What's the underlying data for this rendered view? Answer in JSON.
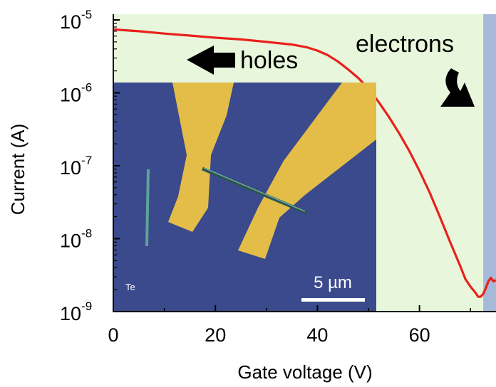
{
  "chart_data": {
    "type": "line",
    "xlabel": "Gate voltage (V)",
    "ylabel": "Current (A)",
    "xlim": [
      0,
      75
    ],
    "ylim_log10": [
      -9,
      -5
    ],
    "y_scale": "log",
    "grid": false,
    "x_ticks": [
      0,
      20,
      40,
      60
    ],
    "x_tick_labels": [
      "0",
      "20",
      "40",
      "60"
    ],
    "y_ticks": [
      {
        "base": "10",
        "exp": "-5",
        "value": 1e-05
      },
      {
        "base": "10",
        "exp": "-6",
        "value": 1e-06
      },
      {
        "base": "10",
        "exp": "-7",
        "value": 1e-07
      },
      {
        "base": "10",
        "exp": "-8",
        "value": 1e-08
      },
      {
        "base": "10",
        "exp": "-9",
        "value": 1e-09
      }
    ],
    "series": [
      {
        "color": "#e8211b",
        "x": [
          0,
          5,
          10,
          15,
          20,
          25,
          30,
          35,
          38,
          40,
          42,
          44,
          46,
          48,
          50,
          52,
          54,
          56,
          58,
          60,
          62,
          64,
          66,
          68,
          69,
          70,
          71,
          71.5,
          72,
          72.5,
          73,
          73.5,
          74,
          74.5,
          75
        ],
        "y": [
          7.4e-06,
          7e-06,
          6.5e-06,
          6.1e-06,
          5.7e-06,
          5.4e-06,
          5e-06,
          4.6e-06,
          4.2e-06,
          3.8e-06,
          3.3e-06,
          2.7e-06,
          2.1e-06,
          1.6e-06,
          1.15e-06,
          7.5e-07,
          4.7e-07,
          2.8e-07,
          1.6e-07,
          8.5e-08,
          4.3e-08,
          2e-08,
          9e-09,
          4.2e-09,
          2.8e-09,
          2.2e-09,
          1.8e-09,
          1.6e-09,
          1.6e-09,
          1.75e-09,
          2.1e-09,
          2.6e-09,
          2.9e-09,
          2.6e-09,
          2.7e-09
        ]
      }
    ],
    "regions": [
      {
        "name": "holes-region",
        "x_range": [
          0,
          72.5
        ],
        "color": "#e8f7dc"
      },
      {
        "name": "electrons-region",
        "x_range": [
          72.5,
          75
        ],
        "color": "#a7b9d8"
      }
    ],
    "annotations": [
      {
        "text": "holes"
      },
      {
        "text": "electrons"
      }
    ]
  },
  "inset": {
    "sample_label": "Te",
    "scale_bar_label": "5 µm",
    "background_color": "#3a4a8c",
    "electrode_color": "#e5c04a"
  }
}
